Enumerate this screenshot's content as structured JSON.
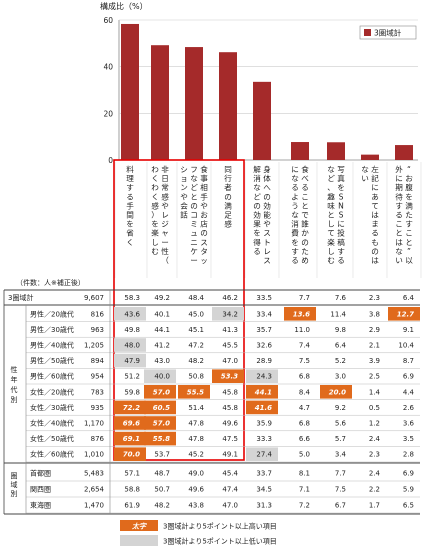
{
  "chart_data": {
    "type": "bar",
    "ylabel": "構成比（%）",
    "ylim": [
      0,
      60
    ],
    "yticks": [
      "60",
      "40",
      "20",
      "0"
    ],
    "legend_label": "3圏域計",
    "bar_color": "#a52a2a",
    "high_color": "#e06a1c",
    "low_color": "#d4d4d4",
    "categories": [
      "料理する手間を省く",
      "非日常感やレジャー性（わくわく感）を楽しむ",
      "食事相手やお店のスタッフなどとのコミュニケーションや会話",
      "同行者の満足感",
      "身体への効能やストレス解消などの効果を得る",
      "食べることで誰かのためになるような消費をする",
      "写真をSNSに投稿するなど、趣味として楽しむ",
      "左記にあてはまるものはない",
      "“お腹を満たすこと”以外に期待することはない"
    ],
    "values": [
      58.3,
      49.2,
      48.4,
      46.2,
      33.5,
      7.7,
      7.6,
      2.3,
      6.4
    ],
    "highlighted_bars": [
      0,
      1,
      2,
      3
    ]
  },
  "table": {
    "count_header": "（件数：人※補正後）",
    "total_row": {
      "label": "3圏域計",
      "n": "9,607",
      "values": [
        "58.3",
        "49.2",
        "48.4",
        "46.2",
        "33.5",
        "7.7",
        "7.6",
        "2.3",
        "6.4"
      ]
    },
    "group_age_label": "性年代別",
    "group_area_label": "圏域別",
    "age_rows": [
      {
        "label": "男性／20歳代",
        "n": "816",
        "values": [
          "43.6",
          "40.1",
          "45.0",
          "34.2",
          "33.4",
          "13.6",
          "11.4",
          "3.8",
          "12.7"
        ],
        "marks": [
          "L",
          "",
          "",
          "L",
          "",
          "H",
          "",
          "",
          "H"
        ]
      },
      {
        "label": "男性／30歳代",
        "n": "963",
        "values": [
          "49.8",
          "44.1",
          "45.1",
          "41.3",
          "35.7",
          "11.0",
          "9.8",
          "2.9",
          "9.1"
        ],
        "marks": [
          "",
          "",
          "",
          "",
          "",
          "",
          "",
          "",
          ""
        ]
      },
      {
        "label": "男性／40歳代",
        "n": "1,205",
        "values": [
          "48.0",
          "41.2",
          "47.2",
          "45.5",
          "32.6",
          "7.4",
          "6.4",
          "2.1",
          "10.4"
        ],
        "marks": [
          "L",
          "",
          "",
          "",
          "",
          "",
          "",
          "",
          ""
        ]
      },
      {
        "label": "男性／50歳代",
        "n": "894",
        "values": [
          "47.9",
          "43.0",
          "48.2",
          "47.0",
          "28.9",
          "7.5",
          "5.2",
          "3.9",
          "8.7"
        ],
        "marks": [
          "L",
          "",
          "",
          "",
          "",
          "",
          "",
          "",
          ""
        ]
      },
      {
        "label": "男性／60歳代",
        "n": "954",
        "values": [
          "51.2",
          "40.0",
          "50.8",
          "53.3",
          "24.3",
          "6.8",
          "3.0",
          "2.5",
          "6.9"
        ],
        "marks": [
          "",
          "L",
          "",
          "H",
          "L",
          "",
          "",
          "",
          ""
        ]
      },
      {
        "label": "女性／20歳代",
        "n": "783",
        "values": [
          "59.8",
          "57.0",
          "55.5",
          "45.8",
          "44.1",
          "8.4",
          "20.0",
          "1.4",
          "4.4"
        ],
        "marks": [
          "",
          "H",
          "H",
          "",
          "H",
          "",
          "H",
          "",
          ""
        ]
      },
      {
        "label": "女性／30歳代",
        "n": "935",
        "values": [
          "72.2",
          "60.5",
          "51.4",
          "45.8",
          "41.6",
          "4.7",
          "9.2",
          "0.5",
          "2.6"
        ],
        "marks": [
          "H",
          "H",
          "",
          "",
          "H",
          "",
          "",
          "",
          ""
        ]
      },
      {
        "label": "女性／40歳代",
        "n": "1,170",
        "values": [
          "69.6",
          "57.0",
          "47.8",
          "49.6",
          "35.9",
          "6.8",
          "5.6",
          "1.2",
          "3.6"
        ],
        "marks": [
          "H",
          "H",
          "",
          "",
          "",
          "",
          "",
          "",
          ""
        ]
      },
      {
        "label": "女性／50歳代",
        "n": "876",
        "values": [
          "69.1",
          "55.8",
          "47.8",
          "47.5",
          "33.3",
          "6.6",
          "5.7",
          "2.4",
          "3.5"
        ],
        "marks": [
          "H",
          "H",
          "",
          "",
          "",
          "",
          "",
          "",
          ""
        ]
      },
      {
        "label": "女性／60歳代",
        "n": "1,010",
        "values": [
          "70.0",
          "53.7",
          "45.2",
          "49.1",
          "27.4",
          "5.0",
          "3.4",
          "2.3",
          "2.8"
        ],
        "marks": [
          "H",
          "",
          "",
          "",
          "L",
          "",
          "",
          "",
          ""
        ]
      }
    ],
    "area_rows": [
      {
        "label": "首都圏",
        "n": "5,483",
        "values": [
          "57.1",
          "48.7",
          "49.0",
          "45.4",
          "33.7",
          "8.1",
          "7.7",
          "2.4",
          "6.9"
        ],
        "marks": [
          "",
          "",
          "",
          "",
          "",
          "",
          "",
          "",
          ""
        ]
      },
      {
        "label": "関西圏",
        "n": "2,654",
        "values": [
          "58.8",
          "50.7",
          "49.6",
          "47.4",
          "34.5",
          "7.1",
          "7.5",
          "2.2",
          "5.9"
        ],
        "marks": [
          "",
          "",
          "",
          "",
          "",
          "",
          "",
          "",
          ""
        ]
      },
      {
        "label": "東海圏",
        "n": "1,470",
        "values": [
          "61.9",
          "48.2",
          "43.8",
          "47.0",
          "31.3",
          "7.2",
          "6.7",
          "1.7",
          "6.5"
        ],
        "marks": [
          "",
          "",
          "",
          "",
          "",
          "",
          "",
          "",
          ""
        ]
      }
    ],
    "legend_high_sample": "太字",
    "legend_high_text": "3圏域計より5ポイント以上高い項目",
    "legend_low_text": "3圏域計より5ポイント以上低い項目"
  }
}
